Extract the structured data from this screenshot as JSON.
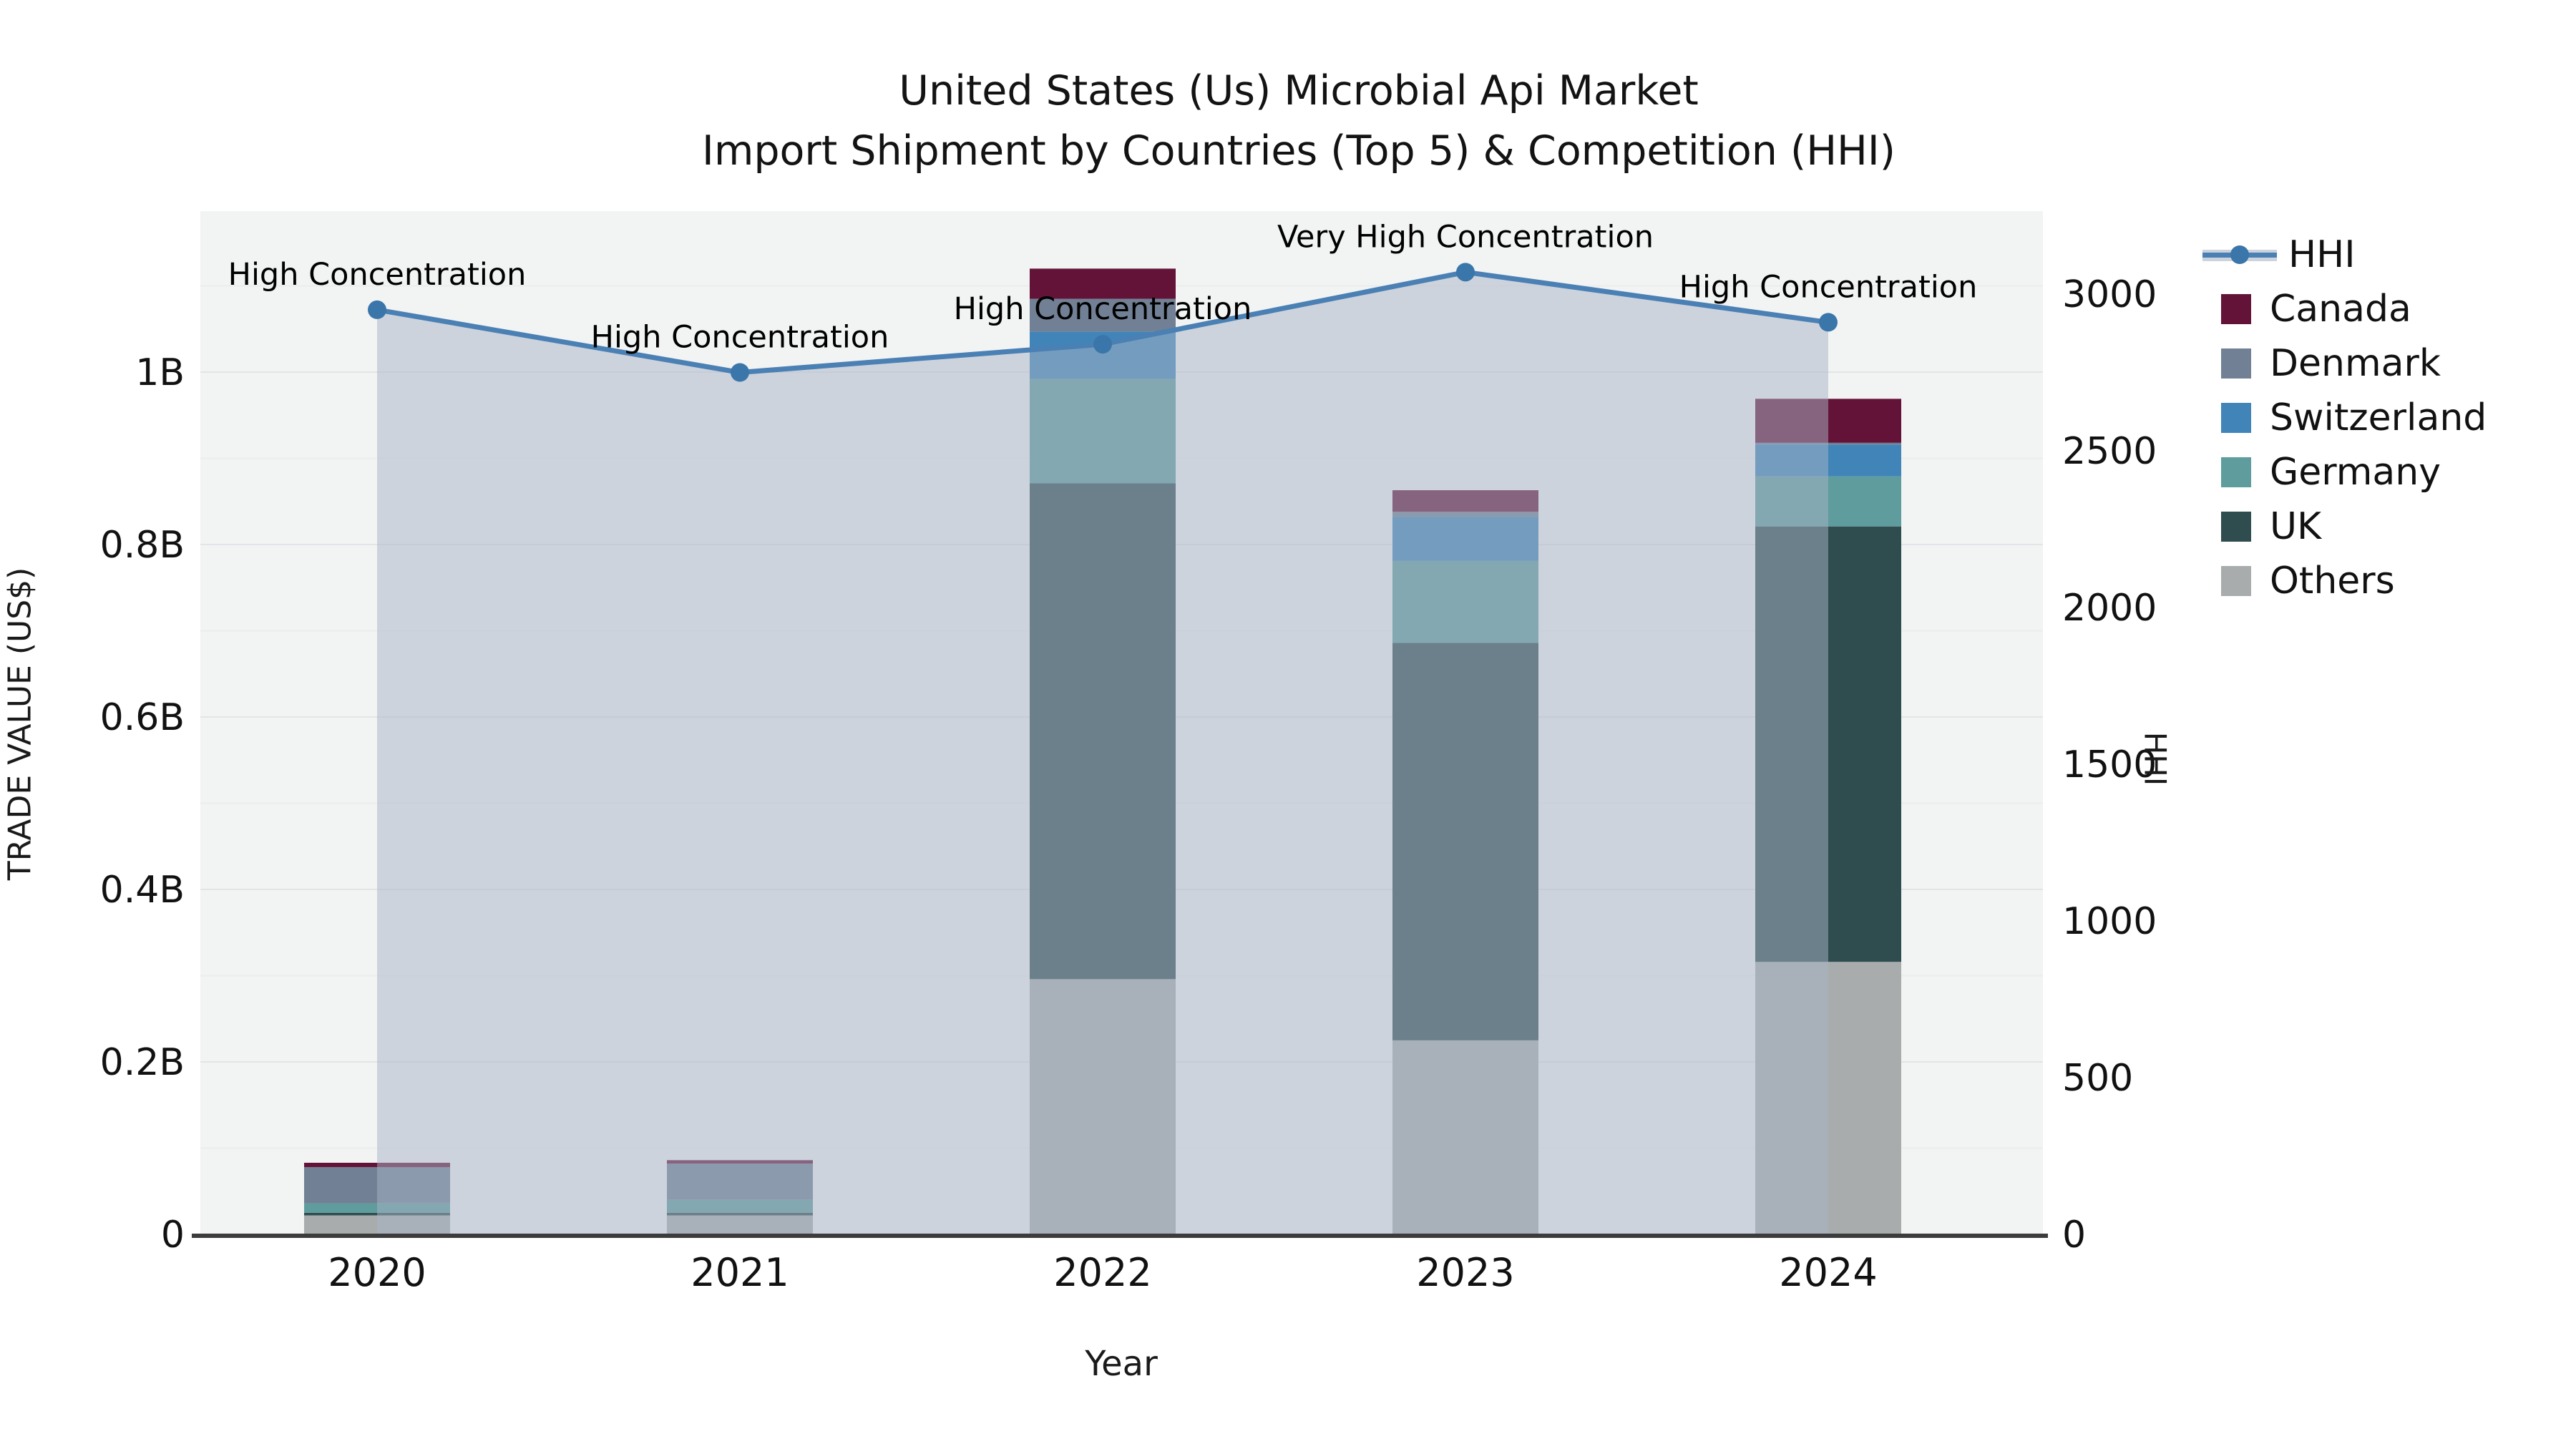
{
  "title": {
    "line1": "United States (Us) Microbial Api Market",
    "line2": "Import Shipment by Countries (Top 5) & Competition (HHI)"
  },
  "axes": {
    "x_label": "Year",
    "y_left_label": "TRADE VALUE (US$)",
    "y_right_label": "HHI",
    "y_left_ticks": [
      "0",
      "0.2B",
      "0.4B",
      "0.6B",
      "0.8B",
      "1B"
    ],
    "y_right_ticks": [
      "0",
      "500",
      "1000",
      "1500",
      "2000",
      "2500",
      "3000"
    ]
  },
  "legend": {
    "line_item": "HHI",
    "bar_items": [
      "Canada",
      "Denmark",
      "Switzerland",
      "Germany",
      "UK",
      "Others"
    ]
  },
  "colors": {
    "canada": "#641338",
    "denmark": "#718094",
    "switzerland": "#4184b8",
    "germany": "#5e9c9e",
    "uk": "#2f4d4f",
    "others": "#a9acac",
    "hhi_line": "#4a80b4",
    "hhi_marker": "#3a76aa",
    "area_fill": "rgba(168,180,197,0.50)",
    "plot_bg": "#f2f3f3",
    "grid_major": "#e2e4e7",
    "grid_minor": "#ebedee",
    "axis_line": "#3c3c3c"
  },
  "chart_data": {
    "type": "bar",
    "stacked": true,
    "categories": [
      "2020",
      "2021",
      "2022",
      "2023",
      "2024"
    ],
    "series": [
      {
        "name": "Canada",
        "color": "#641338",
        "values": [
          0.005,
          0.004,
          0.035,
          0.025,
          0.051
        ]
      },
      {
        "name": "Denmark",
        "color": "#718094",
        "values": [
          0.042,
          0.042,
          0.038,
          0.006,
          0.002
        ]
      },
      {
        "name": "Switzerland",
        "color": "#4184b8",
        "values": [
          0.0,
          0.0,
          0.055,
          0.051,
          0.037
        ]
      },
      {
        "name": "Germany",
        "color": "#5e9c9e",
        "values": [
          0.011,
          0.015,
          0.121,
          0.095,
          0.058
        ]
      },
      {
        "name": "UK",
        "color": "#2f4d4f",
        "values": [
          0.003,
          0.003,
          0.575,
          0.461,
          0.505
        ]
      },
      {
        "name": "Others",
        "color": "#a9acac",
        "values": [
          0.022,
          0.022,
          0.296,
          0.225,
          0.316
        ]
      }
    ],
    "bar_totals_billions": [
      0.083,
      0.086,
      1.12,
      0.863,
      0.969
    ],
    "line_series": {
      "name": "HHI",
      "axis": "right",
      "values": [
        2950,
        2750,
        2840,
        3070,
        2910
      ]
    },
    "annotations": [
      "High Concentration",
      "High Concentration",
      "High Concentration",
      "Very High Concentration",
      "High Concentration"
    ],
    "title": "United States (Us) Microbial Api Market Import Shipment by Countries (Top 5) & Competition (HHI)",
    "xlabel": "Year",
    "ylabel_left": "TRADE VALUE (US$)",
    "ylabel_right": "HHI",
    "ylim_left_billions": [
      0,
      1.187
    ],
    "ylim_right": [
      0,
      3265
    ],
    "grid": true,
    "legend_position": "right"
  }
}
